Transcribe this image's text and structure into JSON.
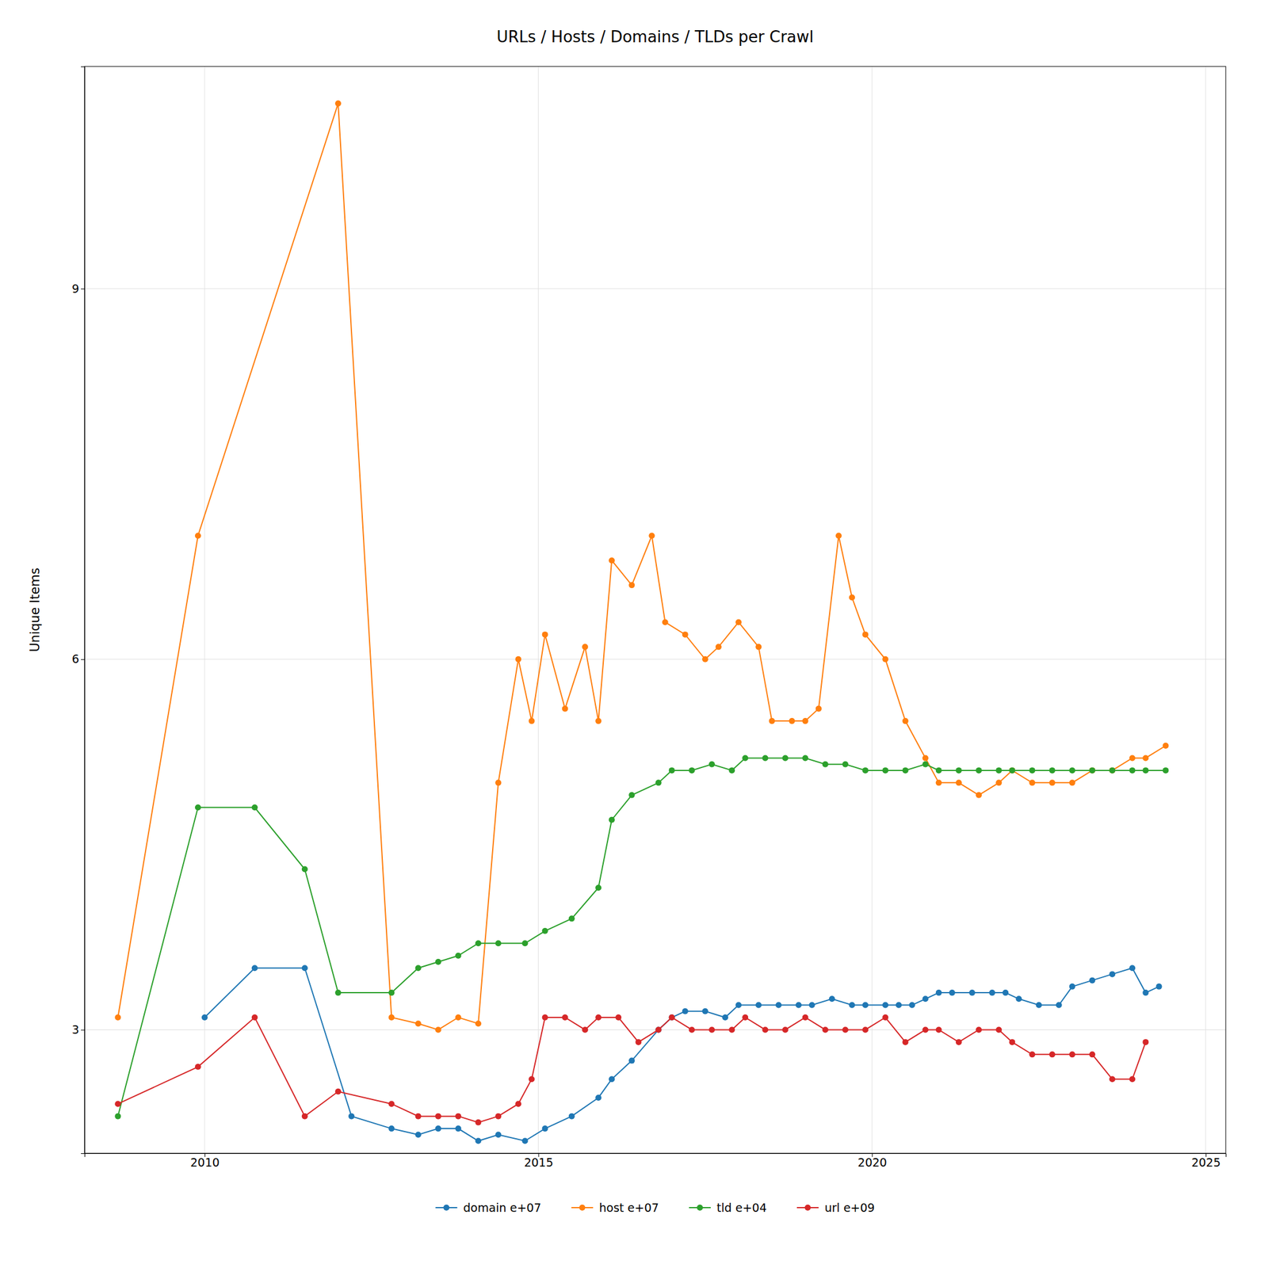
{
  "chart_data": {
    "type": "line",
    "title": "URLs / Hosts / Domains / TLDs per Crawl",
    "y_label": "Unique Items",
    "xlim": [
      2008.2,
      2025.3
    ],
    "ylim": [
      2.0,
      10.8
    ],
    "xticks": [
      2010,
      2015,
      2020,
      2025
    ],
    "yticks": [
      3,
      6,
      9
    ],
    "grid": true,
    "legend": "bottom",
    "marker": "circle",
    "series": [
      {
        "name": "domain e+07",
        "x": [
          2010.0,
          2010.75,
          2011.5,
          2012.2,
          2012.8,
          2013.2,
          2013.5,
          2013.8,
          2014.1,
          2014.4,
          2014.8,
          2015.1,
          2015.5,
          2015.9,
          2016.1,
          2016.4,
          2016.8,
          2017.0,
          2017.2,
          2017.5,
          2017.8,
          2018.0,
          2018.3,
          2018.6,
          2018.9,
          2019.1,
          2019.4,
          2019.7,
          2019.9,
          2020.2,
          2020.4,
          2020.6,
          2020.8,
          2021.0,
          2021.2,
          2021.5,
          2021.8,
          2022.0,
          2022.2,
          2022.5,
          2022.8,
          2023.0,
          2023.3,
          2023.6,
          2023.9,
          2024.1,
          2024.3
        ],
        "values": [
          3.1,
          3.5,
          3.5,
          2.3,
          2.2,
          2.15,
          2.2,
          2.2,
          2.1,
          2.15,
          2.1,
          2.2,
          2.3,
          2.45,
          2.6,
          2.75,
          3.0,
          3.1,
          3.15,
          3.15,
          3.1,
          3.2,
          3.2,
          3.2,
          3.2,
          3.2,
          3.25,
          3.2,
          3.2,
          3.2,
          3.2,
          3.2,
          3.25,
          3.3,
          3.3,
          3.3,
          3.3,
          3.3,
          3.25,
          3.2,
          3.2,
          3.35,
          3.4,
          3.45,
          3.5,
          3.3,
          3.35
        ]
      },
      {
        "name": "host e+07",
        "x": [
          2008.7,
          2009.9,
          2012.0,
          2012.8,
          2013.2,
          2013.5,
          2013.8,
          2014.1,
          2014.4,
          2014.7,
          2014.9,
          2015.1,
          2015.4,
          2015.7,
          2015.9,
          2016.1,
          2016.4,
          2016.7,
          2016.9,
          2017.2,
          2017.5,
          2017.7,
          2018.0,
          2018.3,
          2018.5,
          2018.8,
          2019.0,
          2019.2,
          2019.5,
          2019.7,
          2019.9,
          2020.2,
          2020.5,
          2020.8,
          2021.0,
          2021.3,
          2021.6,
          2021.9,
          2022.1,
          2022.4,
          2022.7,
          2023.0,
          2023.3,
          2023.6,
          2023.9,
          2024.1,
          2024.4
        ],
        "values": [
          3.1,
          7.0,
          10.5,
          3.1,
          3.05,
          3.0,
          3.1,
          3.05,
          5.0,
          6.0,
          5.5,
          6.2,
          5.6,
          6.1,
          5.5,
          6.8,
          6.6,
          7.0,
          6.3,
          6.2,
          6.0,
          6.1,
          6.3,
          6.1,
          5.5,
          5.5,
          5.5,
          5.6,
          7.0,
          6.5,
          6.2,
          6.0,
          5.5,
          5.2,
          5.0,
          5.0,
          4.9,
          5.0,
          5.1,
          5.0,
          5.0,
          5.0,
          5.1,
          5.1,
          5.2,
          5.2,
          5.3
        ]
      },
      {
        "name": "tld e+04",
        "x": [
          2008.7,
          2009.9,
          2010.75,
          2011.5,
          2012.0,
          2012.8,
          2013.2,
          2013.5,
          2013.8,
          2014.1,
          2014.4,
          2014.8,
          2015.1,
          2015.5,
          2015.9,
          2016.1,
          2016.4,
          2016.8,
          2017.0,
          2017.3,
          2017.6,
          2017.9,
          2018.1,
          2018.4,
          2018.7,
          2019.0,
          2019.3,
          2019.6,
          2019.9,
          2020.2,
          2020.5,
          2020.8,
          2021.0,
          2021.3,
          2021.6,
          2021.9,
          2022.1,
          2022.4,
          2022.7,
          2023.0,
          2023.3,
          2023.6,
          2023.9,
          2024.1,
          2024.4
        ],
        "values": [
          2.3,
          4.8,
          4.8,
          4.3,
          3.3,
          3.3,
          3.5,
          3.55,
          3.6,
          3.7,
          3.7,
          3.7,
          3.8,
          3.9,
          4.15,
          4.7,
          4.9,
          5.0,
          5.1,
          5.1,
          5.15,
          5.1,
          5.2,
          5.2,
          5.2,
          5.2,
          5.15,
          5.15,
          5.1,
          5.1,
          5.1,
          5.15,
          5.1,
          5.1,
          5.1,
          5.1,
          5.1,
          5.1,
          5.1,
          5.1,
          5.1,
          5.1,
          5.1,
          5.1,
          5.1
        ]
      },
      {
        "name": "url e+09",
        "x": [
          2008.7,
          2009.9,
          2010.75,
          2011.5,
          2012.0,
          2012.8,
          2013.2,
          2013.5,
          2013.8,
          2014.1,
          2014.4,
          2014.7,
          2014.9,
          2015.1,
          2015.4,
          2015.7,
          2015.9,
          2016.2,
          2016.5,
          2016.8,
          2017.0,
          2017.3,
          2017.6,
          2017.9,
          2018.1,
          2018.4,
          2018.7,
          2019.0,
          2019.3,
          2019.6,
          2019.9,
          2020.2,
          2020.5,
          2020.8,
          2021.0,
          2021.3,
          2021.6,
          2021.9,
          2022.1,
          2022.4,
          2022.7,
          2023.0,
          2023.3,
          2023.6,
          2023.9,
          2024.1
        ],
        "values": [
          2.4,
          2.7,
          3.1,
          2.3,
          2.5,
          2.4,
          2.3,
          2.3,
          2.3,
          2.25,
          2.3,
          2.4,
          2.6,
          3.1,
          3.1,
          3.0,
          3.1,
          3.1,
          2.9,
          3.0,
          3.1,
          3.0,
          3.0,
          3.0,
          3.1,
          3.0,
          3.0,
          3.1,
          3.0,
          3.0,
          3.0,
          3.1,
          2.9,
          3.0,
          3.0,
          2.9,
          3.0,
          3.0,
          2.9,
          2.8,
          2.8,
          2.8,
          2.8,
          2.6,
          2.6,
          2.9
        ]
      }
    ]
  }
}
